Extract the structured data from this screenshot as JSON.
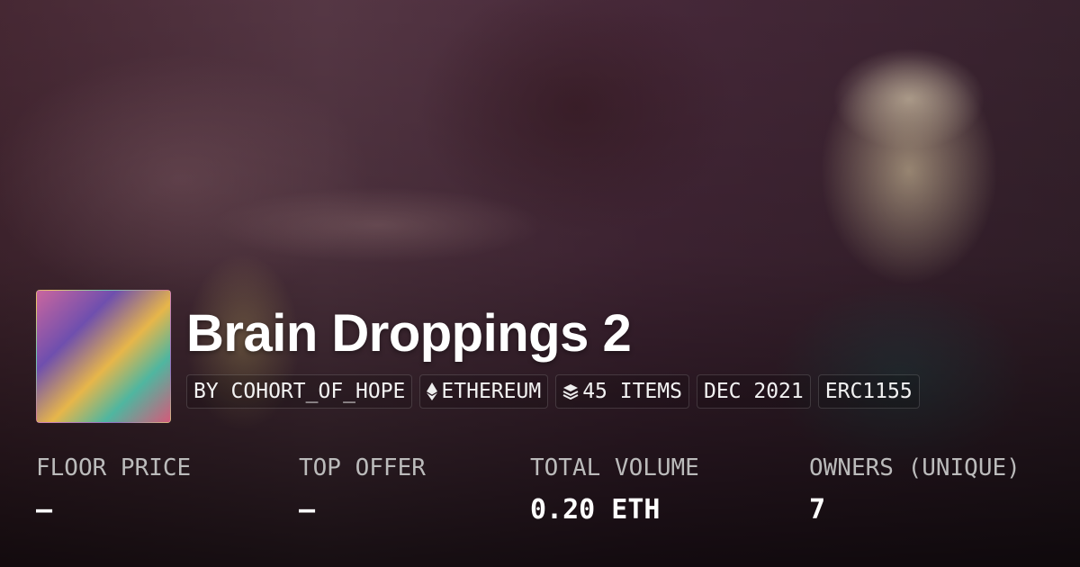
{
  "collection": {
    "title": "Brain Droppings 2"
  },
  "tags": [
    {
      "label": "BY COHORT_OF_HOPE",
      "icon": ""
    },
    {
      "label": "ETHEREUM",
      "icon": "ethereum-icon"
    },
    {
      "label": "45 ITEMS",
      "icon": "layers-icon"
    },
    {
      "label": "DEC 2021",
      "icon": ""
    },
    {
      "label": "ERC1155",
      "icon": ""
    }
  ],
  "stats": [
    {
      "label": "FLOOR PRICE",
      "value": "–"
    },
    {
      "label": "TOP OFFER",
      "value": "–"
    },
    {
      "label": "TOTAL VOLUME",
      "value": "0.20 ETH"
    },
    {
      "label": "OWNERS (UNIQUE)",
      "value": "7"
    }
  ]
}
